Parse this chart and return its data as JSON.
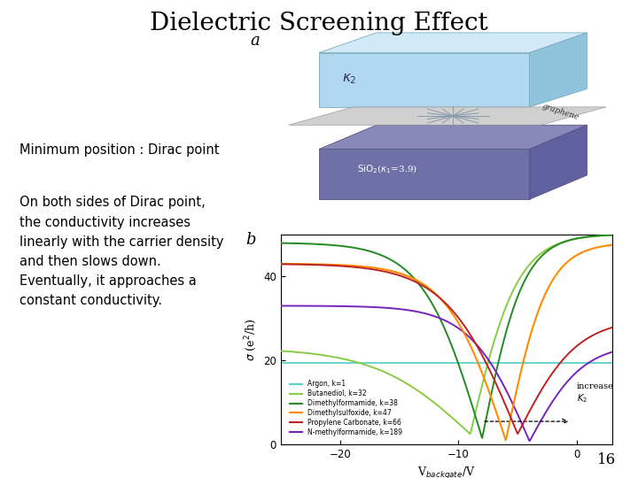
{
  "title": "Dielectric Screening Effect",
  "title_fontsize": 20,
  "background_color": "#ffffff",
  "text_left_1": "Minimum position : Dirac point",
  "text_left_2": "On both sides of Dirac point,\nthe conductivity increases\nlinearly with the carrier density\nand then slows down.\nEventually, it approaches a\nconstant conductivity.",
  "label_a": "a",
  "label_b": "b",
  "page_number": "16",
  "font_size_body": 10.5,
  "font_size_label": 13,
  "graph_xlabel": "V$_{backgate}$/V",
  "graph_ylabel": "$\\sigma$ (e$^2$/h)",
  "x_ticks": [
    -20,
    -10,
    0
  ],
  "y_ticks": [
    0,
    20,
    40
  ],
  "legend_entries": [
    {
      "label": "Argon, k=1",
      "color": "#5ECFCF"
    },
    {
      "label": "Butanediol, k=32",
      "color": "#88CC44"
    },
    {
      "label": "Dimethylformamide, k=38",
      "color": "#228B22"
    },
    {
      "label": "Dimethylsulfoxide, k=47",
      "color": "#FF8C00"
    },
    {
      "label": "Propylene Carbonate, k=66",
      "color": "#BB2222"
    },
    {
      "label": "N-methylformamide, k=189",
      "color": "#7722BB"
    }
  ]
}
